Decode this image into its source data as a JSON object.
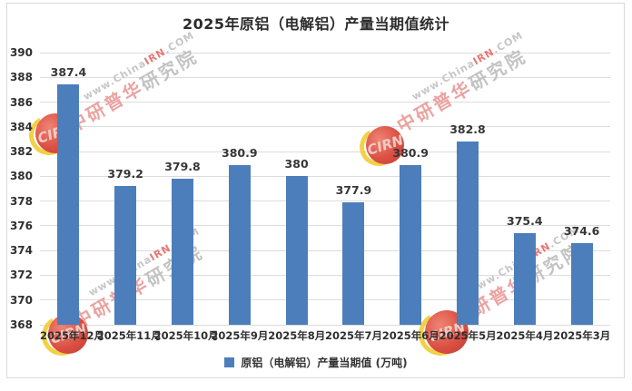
{
  "title": "2025年原铝（电解铝）产量当期值统计",
  "chart_data": {
    "type": "bar",
    "title": "2025年原铝（电解铝）产量当期值统计",
    "categories": [
      "2025年12月",
      "2025年11月",
      "2025年10月",
      "2025年9月",
      "2025年8月",
      "2025年7月",
      "2025年6月",
      "2025年5月",
      "2025年4月",
      "2025年3月"
    ],
    "values": [
      387.4,
      379.2,
      379.8,
      380.9,
      380,
      377.9,
      380.9,
      382.8,
      375.4,
      374.6
    ],
    "series_name": "原铝（电解铝）产量当期值 (万吨)",
    "xlabel": "",
    "ylabel": "",
    "ylim": [
      368,
      390
    ],
    "ytick_step": 2,
    "grid": true,
    "legend_position": "bottom",
    "bar_color": "#4C7EBB",
    "data_labels": true
  },
  "legend": {
    "label": "原铝（电解铝）产量当期值 (万吨)",
    "swatch_color": "#4C7EBB"
  },
  "colors": {
    "bar": "#4C7EBB",
    "gridline": "#DCDCDC",
    "axis_text": "#2F2F2F",
    "frame_border": "#D9D9D9"
  },
  "watermark": {
    "url_gray1": "www.China",
    "url_red": "IRN",
    "url_gray2": ".COM",
    "cn_red": "中研普华",
    "cn_gray": "研究院",
    "logo_text": "CIRN"
  }
}
